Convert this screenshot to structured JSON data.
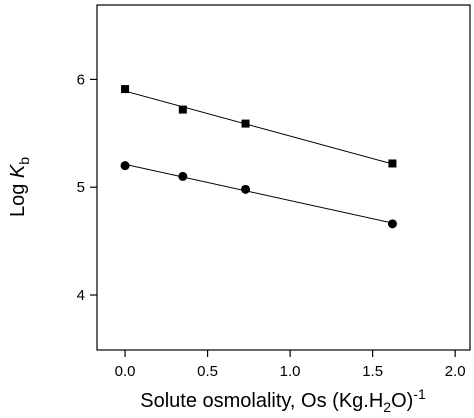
{
  "chart_data": {
    "type": "scatter",
    "x_label": [
      "Solute osmolality, Os (Kg.H",
      "2",
      "O)",
      "-1"
    ],
    "y_label": [
      "Log ",
      "K",
      "b"
    ],
    "xlim": [
      -0.17,
      2.09
    ],
    "ylim": [
      3.49,
      6.69
    ],
    "xticks": [
      {
        "value": 0,
        "label": "0.0"
      },
      {
        "value": 0.5,
        "label": "0.5"
      },
      {
        "value": 1,
        "label": "1.0"
      },
      {
        "value": 1.5,
        "label": "1.5"
      },
      {
        "value": 2,
        "label": "2.0"
      }
    ],
    "yticks": [
      4,
      5,
      6
    ],
    "fit_line": true,
    "series": [
      {
        "marker": "square",
        "color": "#000000",
        "x": [
          0,
          0.35,
          0.73,
          1.62
        ],
        "values": [
          5.91,
          5.72,
          5.59,
          5.22
        ]
      },
      {
        "marker": "circle",
        "color": "#000000",
        "x": [
          0,
          0.35,
          0.73,
          1.62
        ],
        "values": [
          5.2,
          5.1,
          4.98,
          4.66
        ]
      }
    ]
  }
}
